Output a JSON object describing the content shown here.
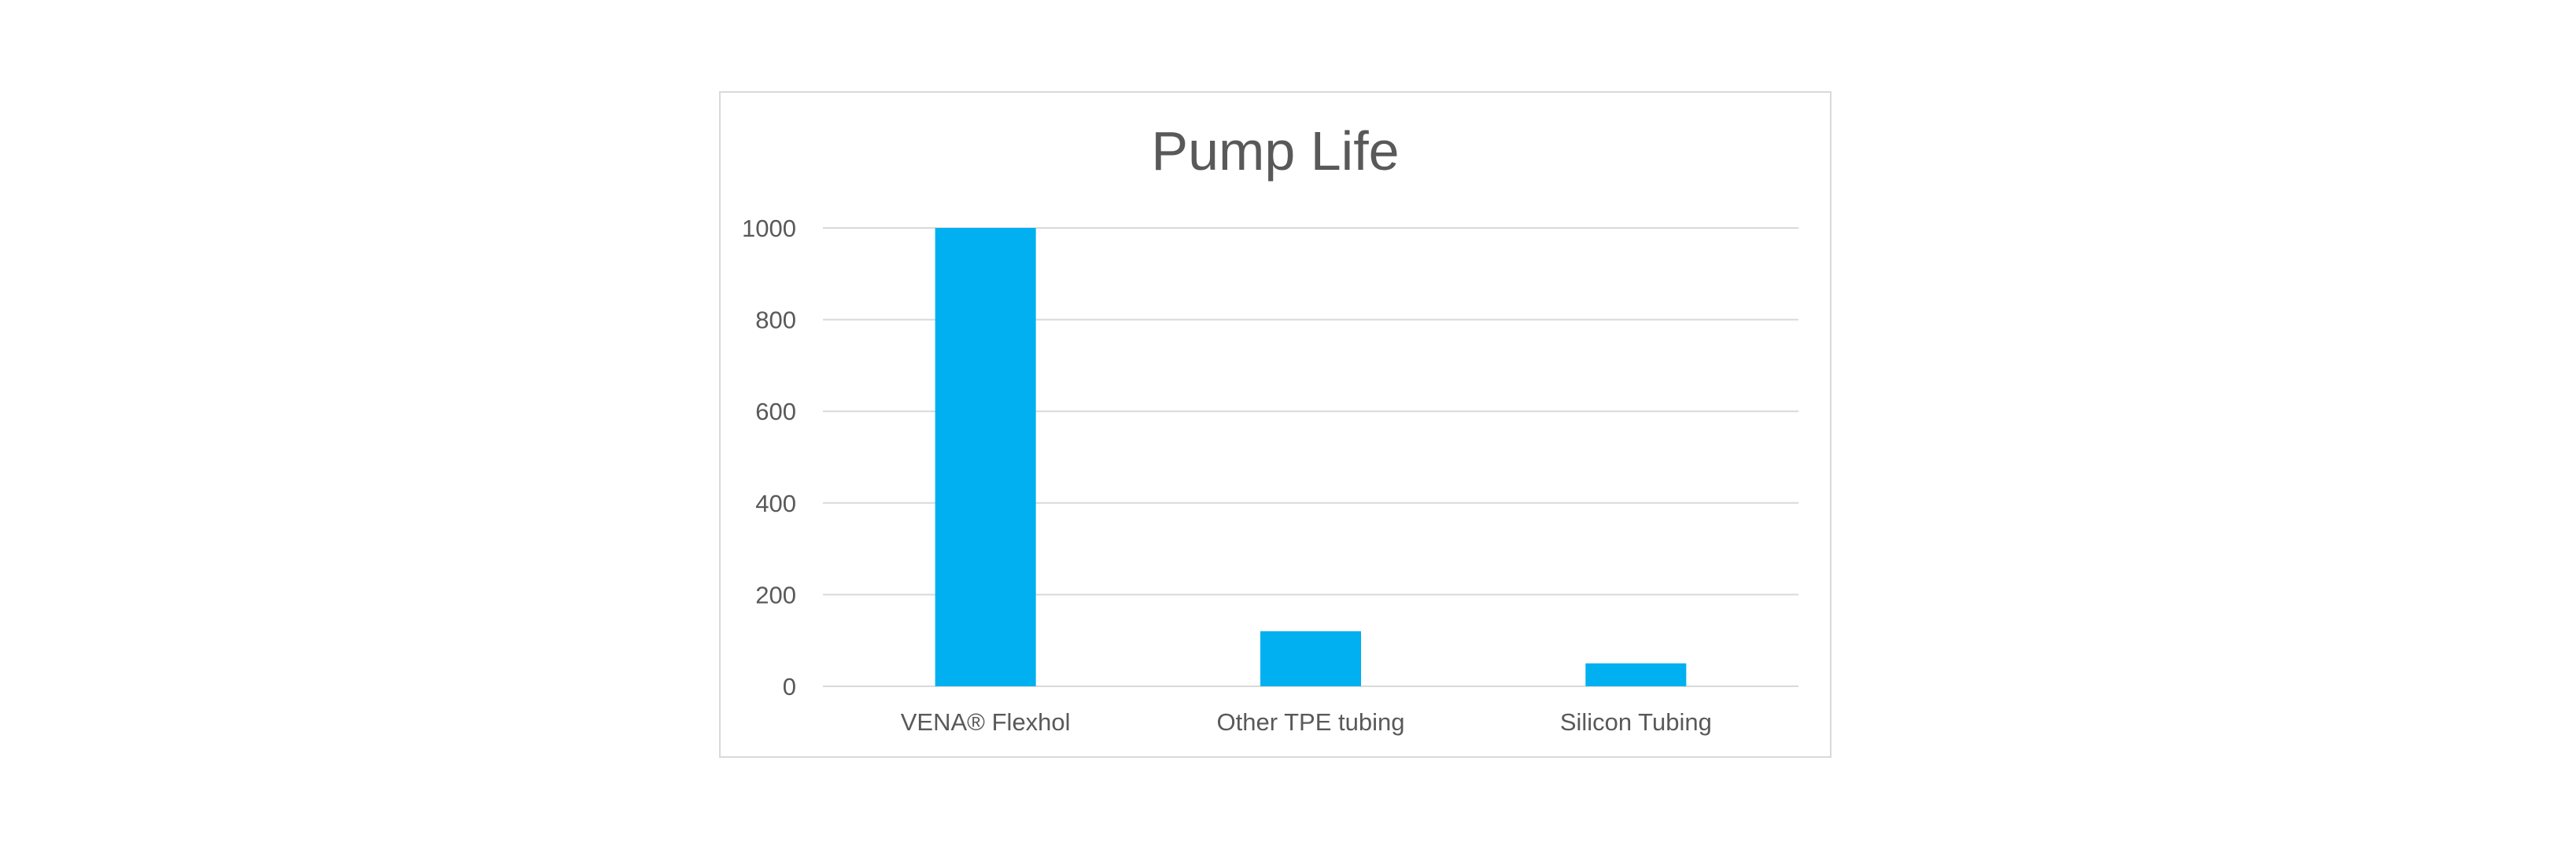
{
  "chart_data": {
    "type": "bar",
    "title": "Pump Life",
    "categories": [
      "VENA® Flexhol",
      "Other TPE tubing",
      "Silicon Tubing"
    ],
    "values": [
      1000,
      120,
      50
    ],
    "xlabel": "",
    "ylabel": "",
    "ylim": [
      0,
      1000
    ],
    "yticks": [
      0,
      200,
      400,
      600,
      800,
      1000
    ],
    "grid": true,
    "legend": "none",
    "bar_color": "#00b0f0",
    "gridline_color": "#d9d9d9",
    "text_color": "#595959"
  }
}
